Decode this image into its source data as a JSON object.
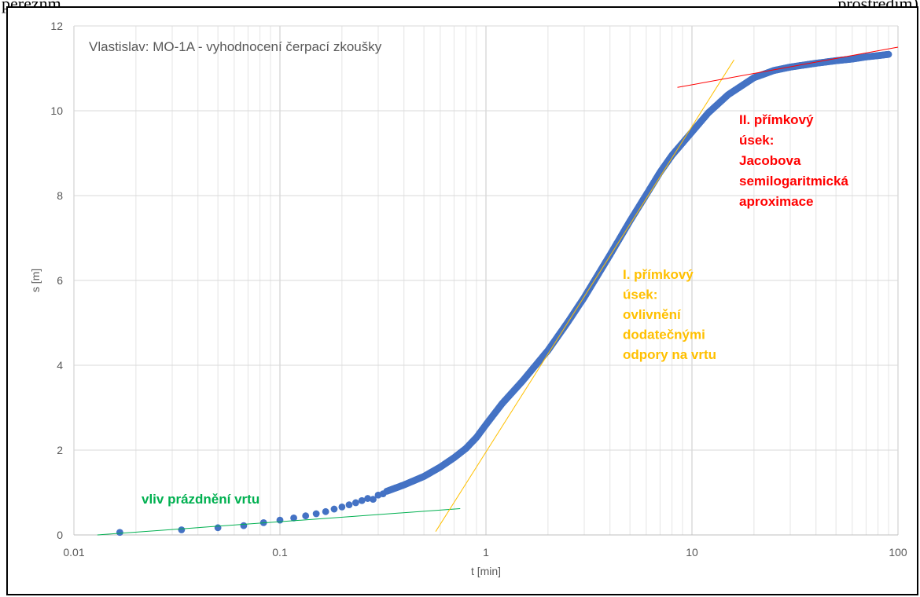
{
  "page": {
    "clipped_left_text": "pereznm",
    "clipped_right_text": "prostředím)"
  },
  "chart_data": {
    "type": "scatter",
    "title": "Vlastislav: MO-1A - vyhodnocení čerpací zkoušky",
    "xlabel": "t [min]",
    "ylabel": "s [m]",
    "xscale": "log",
    "xlim": [
      0.01,
      100
    ],
    "ylim": [
      0,
      12
    ],
    "xticks": [
      0.01,
      0.1,
      1,
      10,
      100
    ],
    "xtick_labels": [
      "0.01",
      "0.1",
      "1",
      "10",
      "100"
    ],
    "yticks": [
      0,
      2,
      4,
      6,
      8,
      10,
      12
    ],
    "ytick_labels": [
      "0",
      "2",
      "4",
      "6",
      "8",
      "10",
      "12"
    ],
    "grid": true,
    "marker_color": "#4472C4",
    "discrete_points": [
      [
        0.0167,
        0.06
      ],
      [
        0.0333,
        0.12
      ],
      [
        0.05,
        0.17
      ],
      [
        0.0667,
        0.22
      ],
      [
        0.0833,
        0.29
      ],
      [
        0.1,
        0.35
      ],
      [
        0.1167,
        0.4
      ],
      [
        0.1333,
        0.45
      ],
      [
        0.15,
        0.5
      ],
      [
        0.1667,
        0.55
      ],
      [
        0.1833,
        0.61
      ],
      [
        0.2,
        0.66
      ],
      [
        0.2167,
        0.71
      ],
      [
        0.2333,
        0.76
      ],
      [
        0.25,
        0.81
      ],
      [
        0.2667,
        0.86
      ],
      [
        0.2833,
        0.84
      ],
      [
        0.3,
        0.94
      ],
      [
        0.3167,
        0.97
      ]
    ],
    "dense_curve": [
      [
        0.33,
        1.03
      ],
      [
        0.4,
        1.18
      ],
      [
        0.5,
        1.38
      ],
      [
        0.6,
        1.6
      ],
      [
        0.7,
        1.82
      ],
      [
        0.8,
        2.04
      ],
      [
        0.9,
        2.3
      ],
      [
        1.0,
        2.6
      ],
      [
        1.2,
        3.1
      ],
      [
        1.5,
        3.62
      ],
      [
        2.0,
        4.35
      ],
      [
        2.5,
        5.02
      ],
      [
        3.0,
        5.6
      ],
      [
        4.0,
        6.6
      ],
      [
        5.0,
        7.4
      ],
      [
        6.0,
        8.02
      ],
      [
        7.0,
        8.55
      ],
      [
        8.0,
        8.95
      ],
      [
        10.0,
        9.5
      ],
      [
        12.0,
        9.95
      ],
      [
        15.0,
        10.38
      ],
      [
        20.0,
        10.78
      ],
      [
        25.0,
        10.95
      ],
      [
        30.0,
        11.03
      ],
      [
        40.0,
        11.12
      ],
      [
        50.0,
        11.18
      ],
      [
        60.0,
        11.22
      ],
      [
        70.0,
        11.27
      ],
      [
        80.0,
        11.3
      ],
      [
        90.0,
        11.33
      ]
    ],
    "fit_lines": [
      {
        "name": "green",
        "color": "#00B050",
        "from": [
          0.013,
          0.0
        ],
        "to": [
          0.75,
          0.62
        ]
      },
      {
        "name": "orange",
        "color": "#FFC000",
        "from": [
          0.57,
          0.08
        ],
        "to": [
          16.0,
          11.2
        ]
      },
      {
        "name": "red",
        "color": "#FF0000",
        "from": [
          8.5,
          10.55
        ],
        "to": [
          100.0,
          11.5
        ]
      }
    ],
    "annotations": [
      {
        "name": "annotation-green",
        "color": "#00B050",
        "lines": [
          "vliv prázdnění vrtu"
        ]
      },
      {
        "name": "annotation-orange",
        "color": "#FFC000",
        "lines": [
          "I. přímkový",
          "úsek:",
          "ovlivnění",
          "dodatečnými",
          "odpory na vrtu"
        ]
      },
      {
        "name": "annotation-red",
        "color": "#FF0000",
        "lines": [
          "II. přímkový",
          "úsek:",
          "Jacobova",
          "semilogaritmická",
          "aproximace"
        ]
      }
    ]
  }
}
